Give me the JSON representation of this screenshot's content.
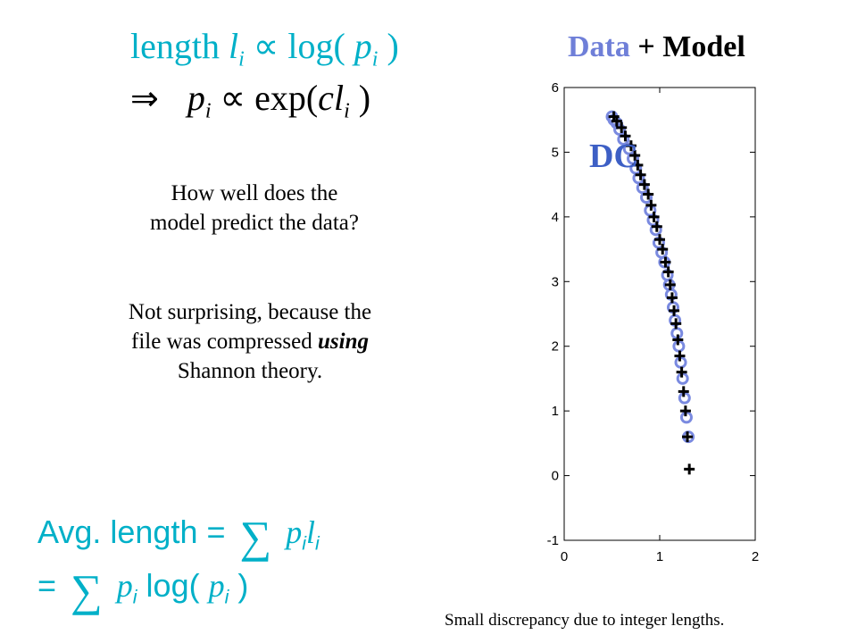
{
  "formulas": {
    "line1": {
      "word": "length",
      "l": "l",
      "i": "i",
      "prop": "∝",
      "log": "log(",
      "p": "p",
      "close": ")"
    },
    "line2": {
      "arrow": "⇒",
      "p": "p",
      "i": "i",
      "prop": "∝",
      "exp": "exp(",
      "c": "c",
      "l": "l",
      "close": ")"
    }
  },
  "text": {
    "question_line1": "How well does the",
    "question_line2": "model predict the data?",
    "explanation_line1": "Not surprising, because the",
    "explanation_line2_a": "file was compressed ",
    "explanation_line2_b": "using",
    "explanation_line3": "Shannon theory.",
    "footnote": "Small discrepancy due to integer lengths."
  },
  "avg": {
    "label": "Avg. length =",
    "sigma": "∑",
    "p": "p",
    "i": "i",
    "l": "l",
    "eq": "=",
    "log": "log(",
    "close": ")"
  },
  "chart_data": {
    "type": "scatter",
    "title_part1": "Data",
    "title_plus": "+",
    "title_part2": "Model",
    "annotation": "DC",
    "xlim": [
      0,
      2
    ],
    "ylim": [
      -1,
      6
    ],
    "xticks": [
      "0",
      "1",
      "2"
    ],
    "yticks": [
      "-1",
      "0",
      "1",
      "2",
      "3",
      "4",
      "5",
      "6"
    ],
    "grid": false,
    "colors": {
      "model": "#7a8ae0",
      "data": "#000000"
    },
    "series": [
      {
        "marker": "o",
        "x": [
          0.5,
          0.52,
          0.55,
          0.58,
          0.62,
          0.68,
          0.72,
          0.75,
          0.78,
          0.82,
          0.86,
          0.9,
          0.93,
          0.96,
          0.99,
          1.02,
          1.05,
          1.08,
          1.1,
          1.12,
          1.14,
          1.16,
          1.18,
          1.2,
          1.22,
          1.24,
          1.26,
          1.28,
          1.3
        ],
        "y": [
          5.55,
          5.5,
          5.45,
          5.35,
          5.2,
          5.05,
          4.9,
          4.75,
          4.6,
          4.45,
          4.3,
          4.1,
          3.95,
          3.8,
          3.6,
          3.45,
          3.3,
          3.1,
          2.95,
          2.8,
          2.6,
          2.4,
          2.2,
          2.0,
          1.75,
          1.5,
          1.2,
          0.9,
          0.6
        ]
      },
      {
        "marker": "+",
        "x": [
          0.52,
          0.55,
          0.6,
          0.64,
          0.7,
          0.74,
          0.77,
          0.8,
          0.84,
          0.88,
          0.91,
          0.94,
          0.97,
          1.0,
          1.03,
          1.06,
          1.09,
          1.11,
          1.13,
          1.15,
          1.17,
          1.19,
          1.21,
          1.23,
          1.25,
          1.27,
          1.29,
          1.31
        ],
        "y": [
          5.55,
          5.48,
          5.38,
          5.25,
          5.1,
          4.95,
          4.8,
          4.65,
          4.5,
          4.35,
          4.18,
          4.0,
          3.85,
          3.65,
          3.5,
          3.3,
          3.15,
          2.95,
          2.75,
          2.55,
          2.35,
          2.1,
          1.85,
          1.6,
          1.3,
          1.0,
          0.6,
          0.1
        ]
      }
    ]
  }
}
